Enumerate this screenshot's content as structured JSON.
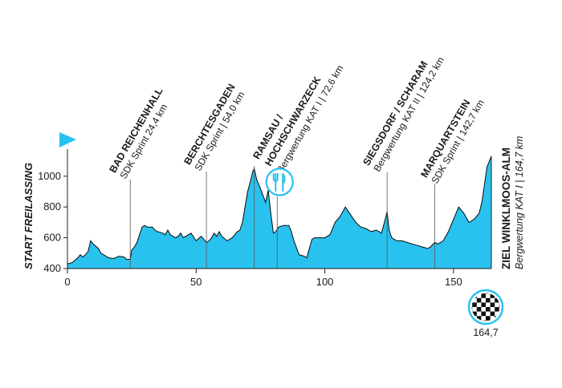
{
  "chart_data": {
    "type": "area",
    "title": "",
    "xlabel": "",
    "ylabel": "",
    "xlim": [
      0,
      164.7
    ],
    "ylim": [
      400,
      1150
    ],
    "x_ticks": [
      0,
      50,
      100,
      150
    ],
    "y_ticks": [
      400,
      600,
      800,
      1000
    ],
    "fill_color": "#29C1EE",
    "line_color": "#1a1a1a",
    "start_label": "START FREILASSING",
    "finish_km_label": "164,7",
    "series": [
      {
        "x": [
          0,
          2,
          4,
          5,
          6,
          7,
          8,
          9,
          10,
          12,
          13,
          14,
          16,
          18,
          20,
          22,
          23,
          24.4,
          25,
          26,
          27,
          28,
          29,
          30,
          31,
          33,
          34,
          35,
          37,
          38,
          39,
          40,
          42,
          43,
          44,
          45,
          46,
          48,
          50,
          52,
          54,
          55,
          56,
          57,
          58,
          59,
          60,
          62,
          64,
          66,
          67,
          68,
          69,
          70,
          71,
          72,
          72.6,
          73.5,
          75,
          77,
          78,
          79,
          80,
          81,
          82,
          84,
          85,
          86,
          87,
          88,
          90,
          92,
          93,
          94,
          95,
          96,
          97,
          98,
          100,
          102,
          104,
          106,
          108,
          110,
          112,
          114,
          116,
          118,
          120,
          122,
          123,
          124.2,
          125,
          126,
          128,
          130,
          132,
          134,
          136,
          138,
          140,
          141,
          142.7,
          144,
          146,
          148,
          150,
          152,
          154,
          156,
          158,
          160,
          161,
          162,
          163,
          164.7
        ],
        "y": [
          430,
          440,
          470,
          490,
          475,
          490,
          510,
          580,
          560,
          530,
          500,
          490,
          470,
          465,
          480,
          475,
          460,
          460,
          520,
          540,
          570,
          620,
          670,
          680,
          670,
          670,
          650,
          640,
          630,
          620,
          650,
          620,
          600,
          610,
          630,
          600,
          610,
          630,
          580,
          610,
          570,
          580,
          600,
          630,
          610,
          640,
          610,
          580,
          600,
          640,
          650,
          700,
          800,
          900,
          960,
          1030,
          1050,
          980,
          920,
          830,
          910,
          760,
          630,
          640,
          670,
          680,
          680,
          680,
          640,
          580,
          490,
          480,
          470,
          530,
          590,
          600,
          600,
          600,
          600,
          620,
          700,
          740,
          800,
          750,
          700,
          670,
          660,
          640,
          650,
          630,
          690,
          770,
          650,
          600,
          580,
          580,
          570,
          560,
          550,
          540,
          530,
          540,
          570,
          560,
          580,
          640,
          720,
          800,
          760,
          700,
          720,
          760,
          830,
          940,
          1060,
          1130
        ]
      }
    ],
    "markers": [
      {
        "km": 24.4,
        "name": "BAD REICHENHALL",
        "detail": "SDK Sprint  24,4 km",
        "label_x": 156,
        "label_y": 224
      },
      {
        "km": 54.0,
        "name": "BERCHTESGADEN",
        "detail": "SDK Sprint | 54,0 km",
        "label_x": 249,
        "label_y": 214
      },
      {
        "km": 72.6,
        "name": "RAMSAU /",
        "detail": "Bergwertung KAT I | 72,6 km",
        "label_x": 335,
        "label_y": 207,
        "extra_name": "HOCHSCHWARZECK",
        "extra_offset": 17
      },
      {
        "km": 81.5,
        "name": "",
        "detail": "",
        "feed_zone": true
      },
      {
        "km": 124.2,
        "name": "SIEGSDORF / SCHARAM",
        "detail": "Bergwertung KAT II | 124,2 km",
        "label_x": 472,
        "label_y": 215
      },
      {
        "km": 142.7,
        "name": "MARQUARTSTEIN",
        "detail": "SDK Sprint | 142,7 km",
        "label_x": 544,
        "label_y": 230
      }
    ],
    "finish": {
      "name": "ZIEL WINKLMOOS-ALM",
      "detail": "Bergwertung KAT I | 164,7 km"
    }
  },
  "icons": {
    "start": "flag-icon",
    "finish": "checkered-flag-icon",
    "feed": "fork-knife-icon"
  }
}
